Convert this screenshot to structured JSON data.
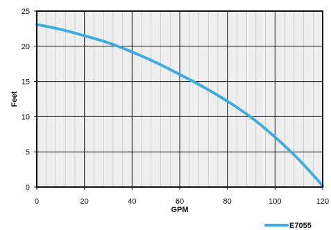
{
  "chart_data": {
    "type": "line",
    "title": "",
    "xlabel": "GPM",
    "ylabel": "Feet",
    "xlim": [
      0,
      120
    ],
    "ylim": [
      0,
      25
    ],
    "xticks": [
      0,
      20,
      40,
      60,
      80,
      100,
      120
    ],
    "yticks": [
      0,
      5,
      10,
      15,
      20,
      25
    ],
    "x_tick_labels": [
      "0",
      "20",
      "40",
      "60",
      "80",
      "100",
      "120"
    ],
    "y_tick_labels": [
      "0",
      "5",
      "10",
      "15",
      "20",
      "25"
    ],
    "grid": "on",
    "legend_position": "bottom-right",
    "series": [
      {
        "name": "E7055",
        "color": "#3aaee0",
        "x": [
          0,
          10,
          20,
          30,
          40,
          50,
          60,
          70,
          80,
          90,
          100,
          110,
          120
        ],
        "y": [
          23.1,
          22.4,
          21.5,
          20.5,
          19.2,
          17.7,
          16.0,
          14.2,
          12.2,
          9.9,
          7.1,
          3.9,
          0.2
        ]
      }
    ]
  }
}
